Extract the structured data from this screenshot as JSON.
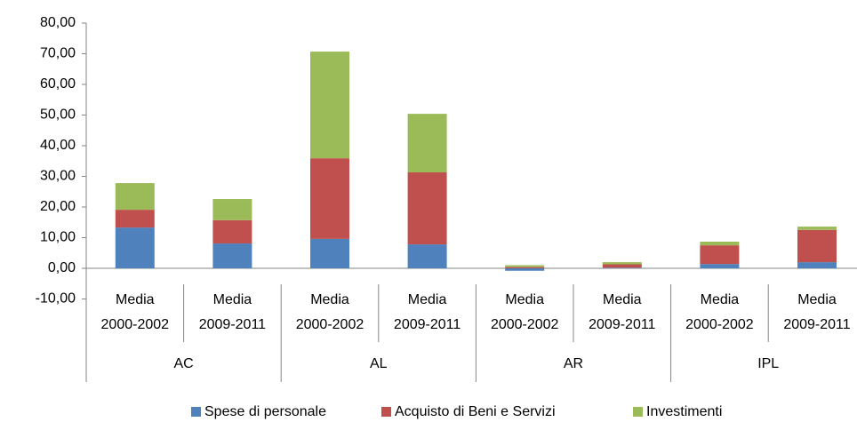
{
  "chart_data": {
    "type": "stacked-bar",
    "categories": [
      [
        "Media",
        "2000-2002"
      ],
      [
        "Media",
        "2009-2011"
      ],
      [
        "Media",
        "2000-2002"
      ],
      [
        "Media",
        "2009-2011"
      ],
      [
        "Media",
        "2000-2002"
      ],
      [
        "Media",
        "2009-2011"
      ],
      [
        "Media",
        "2000-2002"
      ],
      [
        "Media",
        "2009-2011"
      ]
    ],
    "groups": [
      "AC",
      "AL",
      "AR",
      "IPL"
    ],
    "series": [
      {
        "name": "Spese di personale",
        "color": "#4f81bd",
        "values": [
          13.3,
          8.1,
          9.6,
          7.8,
          -0.8,
          0.2,
          1.4,
          2.0
        ]
      },
      {
        "name": "Acquisto di Beni e Servizi",
        "color": "#c0504d",
        "values": [
          5.8,
          7.6,
          26.3,
          23.5,
          0.4,
          1.1,
          6.1,
          10.5
        ]
      },
      {
        "name": "Investimenti",
        "color": "#9bbb59",
        "values": [
          8.7,
          6.9,
          34.8,
          19.1,
          0.6,
          0.7,
          1.2,
          1.1
        ]
      }
    ],
    "ylim": [
      -10,
      80
    ],
    "yticks": [
      {
        "value": -10,
        "label": "-10,00"
      },
      {
        "value": 0,
        "label": "0,00"
      },
      {
        "value": 10,
        "label": "10,00"
      },
      {
        "value": 20,
        "label": "20,00"
      },
      {
        "value": 30,
        "label": "30,00"
      },
      {
        "value": 40,
        "label": "40,00"
      },
      {
        "value": 50,
        "label": "50,00"
      },
      {
        "value": 60,
        "label": "60,00"
      },
      {
        "value": 70,
        "label": "70,00"
      },
      {
        "value": 80,
        "label": "80,00"
      }
    ],
    "grid": false,
    "legend": "bottom"
  }
}
